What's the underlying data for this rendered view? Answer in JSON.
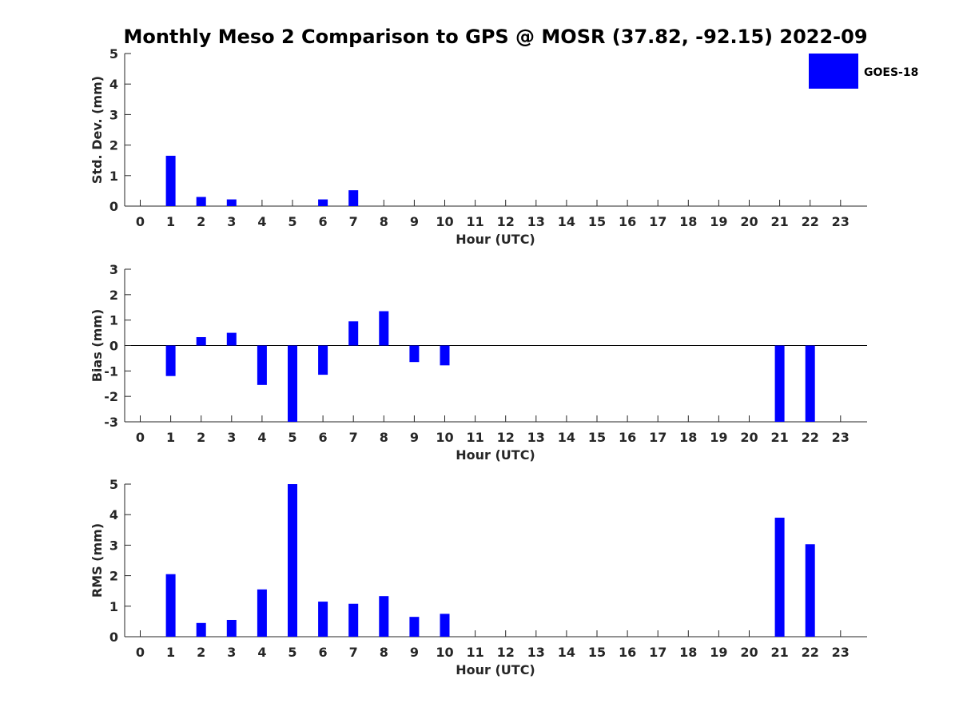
{
  "title": "Monthly Meso 2 Comparison to GPS @ MOSR (37.82, -92.15) 2022-09",
  "legend": {
    "label": "GOES-18",
    "color": "#0000ff",
    "placement": "top-right"
  },
  "chart_data": [
    {
      "type": "bar",
      "xlabel": "Hour (UTC)",
      "ylabel": "Std. Dev. (mm)",
      "ylim": [
        0,
        5
      ],
      "yticks": [
        0,
        1,
        2,
        3,
        4,
        5
      ],
      "categories": [
        0,
        1,
        2,
        3,
        4,
        5,
        6,
        7,
        8,
        9,
        10,
        11,
        12,
        13,
        14,
        15,
        16,
        17,
        18,
        19,
        20,
        21,
        22,
        23
      ],
      "series": [
        {
          "name": "GOES-18",
          "color": "#0000ff",
          "values": [
            null,
            1.65,
            0.3,
            0.22,
            null,
            null,
            0.22,
            0.52,
            null,
            null,
            null,
            null,
            null,
            null,
            null,
            null,
            null,
            null,
            null,
            null,
            null,
            null,
            null,
            null
          ]
        }
      ]
    },
    {
      "type": "bar",
      "xlabel": "Hour (UTC)",
      "ylabel": "Bias (mm)",
      "ylim": [
        -3,
        3
      ],
      "yticks": [
        -3,
        -2,
        -1,
        0,
        1,
        2,
        3
      ],
      "zero_line": true,
      "categories": [
        0,
        1,
        2,
        3,
        4,
        5,
        6,
        7,
        8,
        9,
        10,
        11,
        12,
        13,
        14,
        15,
        16,
        17,
        18,
        19,
        20,
        21,
        22,
        23
      ],
      "series": [
        {
          "name": "GOES-18",
          "color": "#0000ff",
          "values": [
            null,
            -1.2,
            0.33,
            0.5,
            -1.55,
            -3.0,
            -1.15,
            0.95,
            1.35,
            -0.65,
            -0.78,
            null,
            null,
            null,
            null,
            null,
            null,
            null,
            null,
            null,
            null,
            -3.0,
            -3.0,
            null
          ]
        }
      ]
    },
    {
      "type": "bar",
      "xlabel": "Hour (UTC)",
      "ylabel": "RMS (mm)",
      "ylim": [
        0,
        5
      ],
      "yticks": [
        0,
        1,
        2,
        3,
        4,
        5
      ],
      "categories": [
        0,
        1,
        2,
        3,
        4,
        5,
        6,
        7,
        8,
        9,
        10,
        11,
        12,
        13,
        14,
        15,
        16,
        17,
        18,
        19,
        20,
        21,
        22,
        23
      ],
      "series": [
        {
          "name": "GOES-18",
          "color": "#0000ff",
          "values": [
            null,
            2.05,
            0.45,
            0.55,
            1.55,
            5.0,
            1.15,
            1.08,
            1.33,
            0.65,
            0.75,
            null,
            null,
            null,
            null,
            null,
            null,
            null,
            null,
            null,
            null,
            3.9,
            3.03,
            null
          ]
        }
      ]
    }
  ]
}
